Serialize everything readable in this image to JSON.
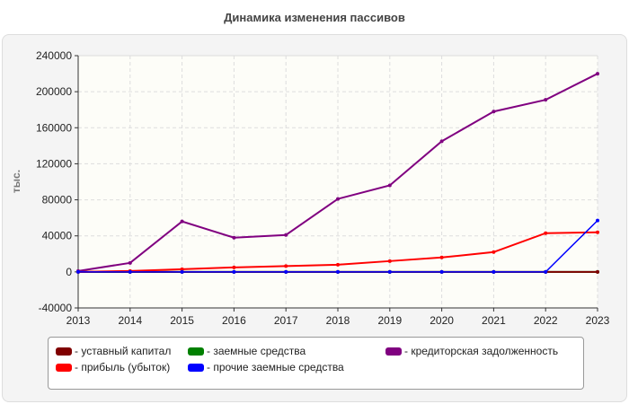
{
  "chart_data": {
    "type": "line",
    "title": "Динамика изменения пассивов",
    "ylabel": "тыс.",
    "x": [
      2013,
      2014,
      2015,
      2016,
      2017,
      2018,
      2019,
      2020,
      2021,
      2022,
      2023
    ],
    "ylim": [
      -40000,
      240000
    ],
    "yticks": [
      -40000,
      0,
      40000,
      80000,
      120000,
      160000,
      200000,
      240000
    ],
    "grid": true,
    "legend": "bottom",
    "series": [
      {
        "name": "- уставный капитал",
        "color": "#800000",
        "values": [
          0,
          0,
          0,
          0,
          0,
          0,
          0,
          0,
          0,
          0,
          0
        ]
      },
      {
        "name": "- прибыль (убыток)",
        "color": "#ff0000",
        "values": [
          0,
          1000,
          3000,
          5000,
          6500,
          8000,
          12000,
          16000,
          22000,
          43000,
          44000
        ]
      },
      {
        "name": "- заемные средства",
        "color": "#008000",
        "values": [
          0,
          0,
          0,
          0,
          0,
          0,
          0,
          0,
          0,
          0,
          0
        ]
      },
      {
        "name": "- прочие заемные средства",
        "color": "#0000ff",
        "values": [
          0,
          0,
          0,
          0,
          0,
          0,
          0,
          0,
          0,
          0,
          57000
        ]
      },
      {
        "name": "- кредиторская задолженность",
        "color": "#800080",
        "values": [
          1000,
          10000,
          56000,
          38000,
          41000,
          81000,
          96000,
          145000,
          178000,
          191000,
          220000
        ]
      }
    ]
  }
}
